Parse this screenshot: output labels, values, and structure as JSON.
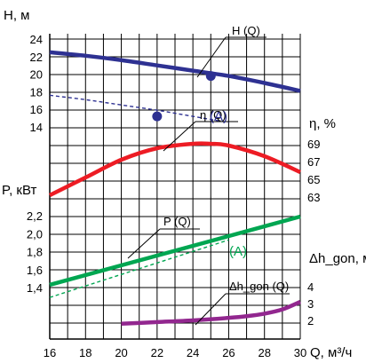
{
  "chart_data": [
    {
      "name": "head",
      "type": "line",
      "ylabel": "H, м",
      "yticks": [
        "24",
        "22",
        "20",
        "18",
        "16",
        "14"
      ],
      "series": [
        {
          "name": "H (Q)",
          "color": "#2e3192",
          "x": [
            16,
            18,
            20,
            22,
            24,
            26,
            28,
            30
          ],
          "y": [
            22.5,
            22.1,
            21.6,
            21.0,
            20.4,
            19.8,
            19.0,
            18.1
          ]
        },
        {
          "name": "(A)",
          "color": "#2e3192",
          "style": "dashed",
          "x": [
            16,
            18,
            20,
            22,
            24,
            26
          ],
          "y": [
            17.6,
            17.1,
            16.5,
            15.9,
            15.2,
            14.5
          ]
        }
      ],
      "points": [
        {
          "x": 25,
          "y": 19.8
        },
        {
          "x": 22,
          "y": 15.2
        }
      ]
    },
    {
      "name": "efficiency",
      "type": "line",
      "ylabel": "η, %",
      "yticks": [
        "69",
        "67",
        "65",
        "63"
      ],
      "series": [
        {
          "name": "η (Q)",
          "color": "#ed1c24",
          "x": [
            16,
            18,
            20,
            22,
            24,
            25,
            26,
            28,
            30
          ],
          "y": [
            63.2,
            65.2,
            67.2,
            68.5,
            69.0,
            69.0,
            68.8,
            67.6,
            65.8
          ]
        }
      ]
    },
    {
      "name": "power",
      "type": "line",
      "ylabel": "P, кВт",
      "yticks": [
        "2,2",
        "2,0",
        "1,8",
        "1,6",
        "1,4"
      ],
      "series": [
        {
          "name": "P (Q)",
          "color": "#00a651",
          "x": [
            16,
            30
          ],
          "y": [
            1.43,
            2.19
          ]
        },
        {
          "name": "(A)",
          "color": "#00a651",
          "style": "dashed",
          "x": [
            16,
            26
          ],
          "y": [
            1.29,
            1.93
          ]
        }
      ]
    },
    {
      "name": "npsh",
      "type": "line",
      "ylabel": "Δh_gon, м",
      "yticks": [
        "4",
        "3",
        "2"
      ],
      "series": [
        {
          "name": "Δh_gon (Q)",
          "color": "#92278f",
          "x": [
            20,
            22,
            24,
            26,
            27,
            28,
            29,
            30
          ],
          "y": [
            1.8,
            1.9,
            2.0,
            2.15,
            2.25,
            2.4,
            2.65,
            3.1
          ]
        }
      ]
    }
  ],
  "x_axis": {
    "label": "Q, м³/ч",
    "ticks": [
      "16",
      "18",
      "20",
      "22",
      "24",
      "26",
      "28",
      "30"
    ],
    "range": [
      16,
      30
    ]
  },
  "labels": {
    "H": "H (Q)",
    "eta": "η (Q)",
    "A_blue": "(A)",
    "P": "P (Q)",
    "A_green": "(A)",
    "npsh": "Δh_gon (Q)"
  },
  "axis_names": {
    "H": "H, м",
    "eta": "η, %",
    "P": "P, кВт",
    "npsh": "Δh_gon, м",
    "Q": "Q, м³/ч"
  }
}
